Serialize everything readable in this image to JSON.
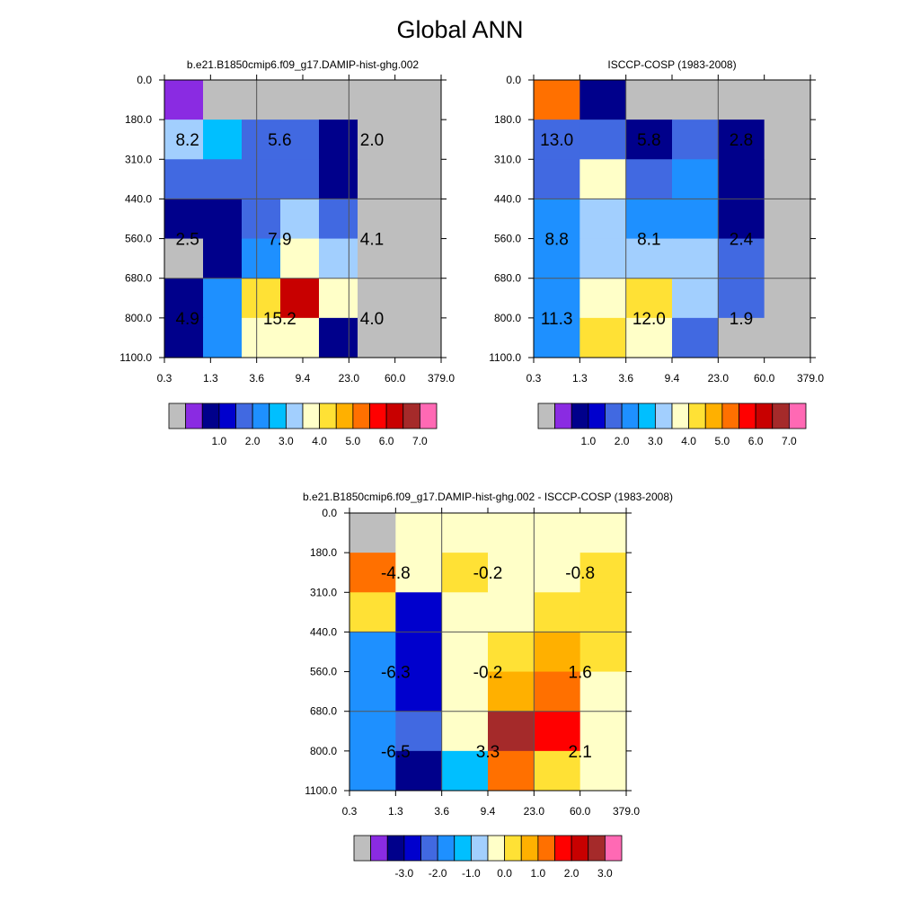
{
  "title": "Global ANN",
  "chart_data": [
    {
      "type": "heatmap",
      "title": "b.e21.B1850cmip6.f09_g17.DAMIP-hist-ghg.002",
      "x_ticks": [
        "0.3",
        "1.3",
        "3.6",
        "9.4",
        "23.0",
        "60.0",
        "379.0"
      ],
      "y_ticks": [
        "0.0",
        "180.0",
        "310.0",
        "440.0",
        "560.0",
        "680.0",
        "800.0",
        "1100.0"
      ],
      "cells": [
        [
          0.05,
          null,
          null,
          null,
          null,
          null
        ],
        [
          3.3,
          2.7,
          1.5,
          1.5,
          0.6,
          null
        ],
        [
          1.5,
          1.5,
          1.5,
          1.5,
          0.6,
          null
        ],
        [
          0.7,
          0.7,
          1.5,
          3.2,
          1.5,
          null
        ],
        [
          null,
          0.7,
          2.3,
          3.8,
          3.3,
          null
        ],
        [
          0.7,
          2.4,
          4.4,
          6.3,
          3.6,
          null
        ],
        [
          0.7,
          2.4,
          3.8,
          3.8,
          0.7,
          null
        ]
      ],
      "annotations": [
        {
          "col": 0.5,
          "row": 1.5,
          "text": "8.2"
        },
        {
          "col": 2.5,
          "row": 1.5,
          "text": "5.6"
        },
        {
          "col": 4.5,
          "row": 1.5,
          "text": "2.0"
        },
        {
          "col": 0.5,
          "row": 4,
          "text": "2.5"
        },
        {
          "col": 2.5,
          "row": 4,
          "text": "7.9"
        },
        {
          "col": 4.5,
          "row": 4,
          "text": "4.1"
        },
        {
          "col": 0.5,
          "row": 6,
          "text": "4.9"
        },
        {
          "col": 2.5,
          "row": 6,
          "text": "15.2"
        },
        {
          "col": 4.5,
          "row": 6,
          "text": "4.0"
        }
      ],
      "colorbar": {
        "levels": [
          1.0,
          2.0,
          3.0,
          4.0,
          5.0,
          6.0,
          7.0
        ],
        "labels": [
          "1.0",
          "2.0",
          "3.0",
          "4.0",
          "5.0",
          "6.0",
          "7.0"
        ]
      }
    },
    {
      "type": "heatmap",
      "title": "ISCCP-COSP (1983-2008)",
      "x_ticks": [
        "0.3",
        "1.3",
        "3.6",
        "9.4",
        "23.0",
        "60.0",
        "379.0"
      ],
      "y_ticks": [
        "0.0",
        "180.0",
        "310.0",
        "440.0",
        "560.0",
        "680.0",
        "800.0",
        "1100.0"
      ],
      "cells": [
        [
          5.3,
          0.7,
          null,
          null,
          null,
          null
        ],
        [
          1.5,
          1.8,
          0.7,
          1.5,
          0.7,
          null
        ],
        [
          1.5,
          3.7,
          1.5,
          2.1,
          0.7,
          null
        ],
        [
          2.0,
          3.3,
          2.0,
          2.0,
          0.7,
          null
        ],
        [
          2.0,
          3.3,
          3.2,
          3.2,
          1.5,
          null
        ],
        [
          2.0,
          3.7,
          4.2,
          3.3,
          1.5,
          null
        ],
        [
          2.0,
          4.2,
          3.8,
          1.5,
          null,
          null
        ]
      ],
      "annotations": [
        {
          "col": 0.5,
          "row": 1.5,
          "text": "13.0"
        },
        {
          "col": 2.5,
          "row": 1.5,
          "text": "5.8"
        },
        {
          "col": 4.5,
          "row": 1.5,
          "text": "2.8"
        },
        {
          "col": 0.5,
          "row": 4,
          "text": "8.8"
        },
        {
          "col": 2.5,
          "row": 4,
          "text": "8.1"
        },
        {
          "col": 4.5,
          "row": 4,
          "text": "2.4"
        },
        {
          "col": 0.5,
          "row": 6,
          "text": "11.3"
        },
        {
          "col": 2.5,
          "row": 6,
          "text": "12.0"
        },
        {
          "col": 4.5,
          "row": 6,
          "text": "1.9"
        }
      ],
      "colorbar": {
        "levels": [
          1.0,
          2.0,
          3.0,
          4.0,
          5.0,
          6.0,
          7.0
        ],
        "labels": [
          "1.0",
          "2.0",
          "3.0",
          "4.0",
          "5.0",
          "6.0",
          "7.0"
        ]
      }
    },
    {
      "type": "heatmap",
      "title": "b.e21.B1850cmip6.f09_g17.DAMIP-hist-ghg.002 - ISCCP-COSP (1983-2008)",
      "x_ticks": [
        "0.3",
        "1.3",
        "3.6",
        "9.4",
        "23.0",
        "60.0",
        "379.0"
      ],
      "y_ticks": [
        "0.0",
        "180.0",
        "310.0",
        "440.0",
        "560.0",
        "680.0",
        "800.0",
        "1100.0"
      ],
      "cells": [
        [
          null,
          -0.3,
          -0.3,
          -0.3,
          -0.3,
          -0.3
        ],
        [
          1.3,
          -0.3,
          0.3,
          -0.3,
          -0.3,
          0.3
        ],
        [
          0.3,
          -2.7,
          -0.3,
          -0.3,
          0.3,
          0.3
        ],
        [
          -1.7,
          -2.7,
          -0.3,
          0.3,
          0.7,
          0.3
        ],
        [
          -1.7,
          -2.7,
          -0.3,
          0.7,
          1.3,
          -0.3
        ],
        [
          -1.7,
          -2.3,
          -0.3,
          2.7,
          1.7,
          -0.3
        ],
        [
          -1.7,
          -3.3,
          -1.3,
          1.3,
          0.3,
          -0.3
        ]
      ],
      "annotations": [
        {
          "col": 1,
          "row": 1.5,
          "text": "-4.8"
        },
        {
          "col": 3,
          "row": 1.5,
          "text": "-0.2"
        },
        {
          "col": 5,
          "row": 1.5,
          "text": "-0.8"
        },
        {
          "col": 1,
          "row": 4,
          "text": "-6.3"
        },
        {
          "col": 3,
          "row": 4,
          "text": "-0.2"
        },
        {
          "col": 5,
          "row": 4,
          "text": "1.6"
        },
        {
          "col": 1,
          "row": 6,
          "text": "-6.5"
        },
        {
          "col": 3,
          "row": 6,
          "text": "3.3"
        },
        {
          "col": 5,
          "row": 6,
          "text": "2.1"
        }
      ],
      "colorbar": {
        "levels": [
          -3.0,
          -2.0,
          -1.0,
          0.0,
          1.0,
          2.0,
          3.0
        ],
        "labels": [
          "-3.0",
          "-2.0",
          "-1.0",
          "0.0",
          "1.0",
          "2.0",
          "3.0"
        ]
      }
    }
  ],
  "colors": {
    "missing": "#bebebe",
    "colormap": [
      "#bebebe",
      "#8a2be2",
      "#00008b",
      "#0000cd",
      "#4169e1",
      "#1e90ff",
      "#00bfff",
      "#a2cffe",
      "#ffffc8",
      "#ffe135",
      "#ffb000",
      "#ff7000",
      "#ff0000",
      "#c80000",
      "#a52a2a",
      "#ff69b4"
    ],
    "cb_cells_main": [
      "#bebebe",
      "#8a2be2",
      "#00008b",
      "#0000cd",
      "#4169e1",
      "#1e90ff",
      "#00bfff",
      "#a2cffe",
      "#ffffc8",
      "#ffe135",
      "#ffb000",
      "#ff7000",
      "#ff0000",
      "#c80000",
      "#a52a2a",
      "#ff69b4"
    ]
  }
}
